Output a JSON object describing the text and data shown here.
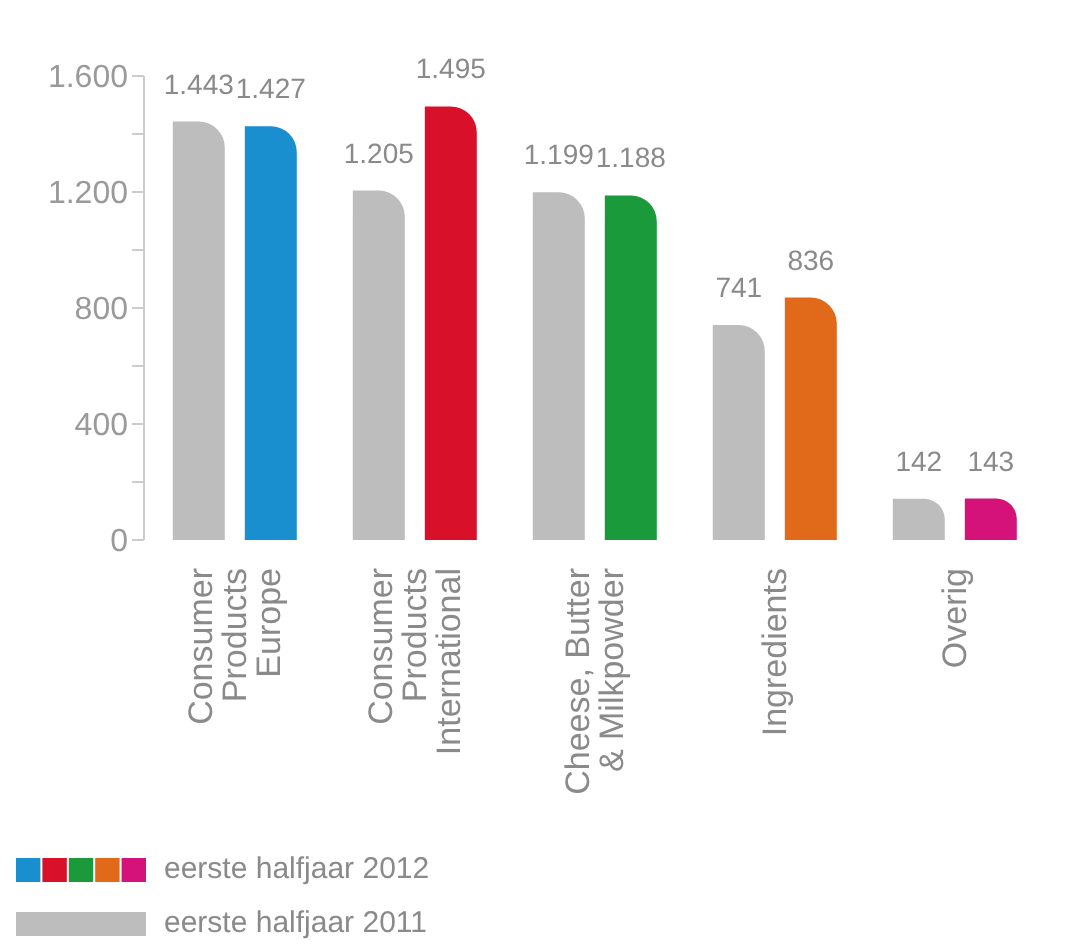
{
  "chart_data": {
    "type": "bar",
    "categories": [
      "Consumer\nProducts\nEurope",
      "Consumer\nProducts\nInternational",
      "Cheese, Butter\n& Milkpowder",
      "Ingredients",
      "Overig"
    ],
    "series": [
      {
        "name": "eerste halfjaar 2011",
        "color": "#bdbdbd",
        "values": [
          1443,
          1205,
          1199,
          741,
          142
        ],
        "value_labels": [
          "1.443",
          "1.205",
          "1.199",
          "741",
          "142"
        ]
      },
      {
        "name": "eerste halfjaar 2012",
        "colors": [
          "#1a8fd0",
          "#d9102a",
          "#1a9a3a",
          "#e06a1a",
          "#d4127a"
        ],
        "values": [
          1427,
          1495,
          1188,
          836,
          143
        ],
        "value_labels": [
          "1.427",
          "1.495",
          "1.188",
          "836",
          "143"
        ]
      }
    ],
    "ylim": [
      0,
      1600
    ],
    "yticks": [
      {
        "value": 0,
        "label": "0"
      },
      {
        "value": 200,
        "label": null
      },
      {
        "value": 400,
        "label": "400"
      },
      {
        "value": 600,
        "label": null
      },
      {
        "value": 800,
        "label": "800"
      },
      {
        "value": 1000,
        "label": null
      },
      {
        "value": 1200,
        "label": "1.200"
      },
      {
        "value": 1400,
        "label": null
      },
      {
        "value": 1600,
        "label": "1.600"
      }
    ],
    "grid": false,
    "legend": "bottom left"
  }
}
